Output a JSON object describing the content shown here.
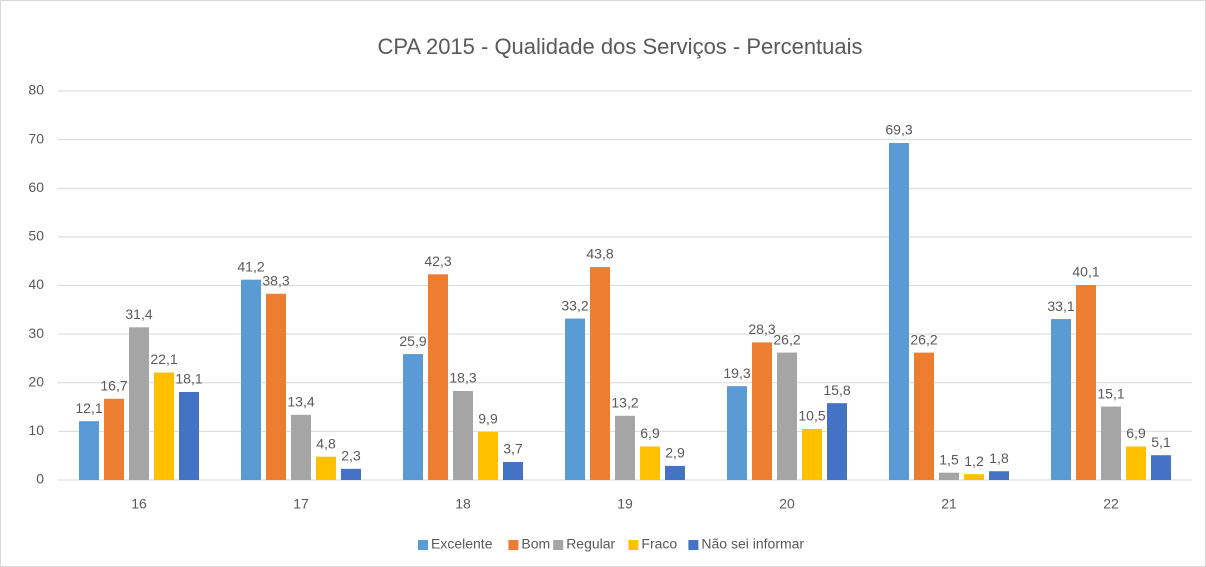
{
  "chart_data": {
    "type": "bar",
    "title": "CPA 2015 - Qualidade dos Serviços - Percentuais",
    "categories": [
      "16",
      "17",
      "18",
      "19",
      "20",
      "21",
      "22"
    ],
    "series": [
      {
        "name": "Excelente",
        "color": "#5b9bd5",
        "values": [
          12.1,
          41.2,
          25.9,
          33.2,
          19.3,
          69.3,
          33.1
        ],
        "value_labels": [
          "12,1",
          "41,2",
          "25,9",
          "33,2",
          "19,3",
          "69,3",
          "33,1"
        ]
      },
      {
        "name": "Bom",
        "color": "#ed7d31",
        "values": [
          16.7,
          38.3,
          42.3,
          43.8,
          28.3,
          26.2,
          40.1
        ],
        "value_labels": [
          "16,7",
          "38,3",
          "42,3",
          "43,8",
          "28,3",
          "26,2",
          "40,1"
        ]
      },
      {
        "name": "Regular",
        "color": "#a5a5a5",
        "values": [
          31.4,
          13.4,
          18.3,
          13.2,
          26.2,
          1.5,
          15.1
        ],
        "value_labels": [
          "31,4",
          "13,4",
          "18,3",
          "13,2",
          "26,2",
          "1,5",
          "15,1"
        ]
      },
      {
        "name": "Fraco",
        "color": "#ffc000",
        "values": [
          22.1,
          4.8,
          9.9,
          6.9,
          10.5,
          1.2,
          6.9
        ],
        "value_labels": [
          "22,1",
          "4,8",
          "9,9",
          "6,9",
          "10,5",
          "1,2",
          "6,9"
        ]
      },
      {
        "name": "Não sei informar",
        "color": "#4472c4",
        "values": [
          18.1,
          2.3,
          3.7,
          2.9,
          15.8,
          1.8,
          5.1
        ],
        "value_labels": [
          "18,1",
          "2,3",
          "3,7",
          "2,9",
          "15,8",
          "1,8",
          "5,1"
        ]
      }
    ],
    "ylim": [
      0,
      80
    ],
    "yticks": [
      0,
      10,
      20,
      30,
      40,
      50,
      60,
      70,
      80
    ],
    "grid": true,
    "legend": "bottom"
  }
}
